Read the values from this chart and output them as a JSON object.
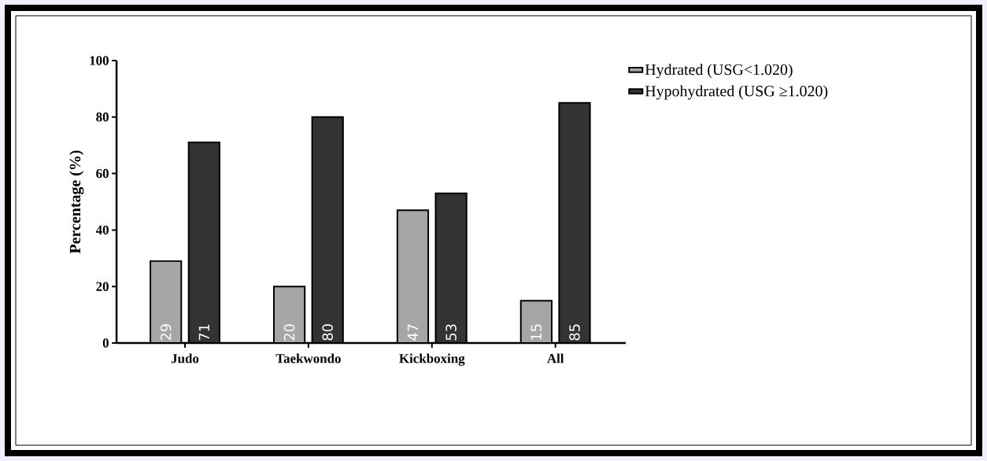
{
  "chart_data": {
    "type": "bar",
    "ylabel": "Percentage (%)",
    "categories": [
      "Judo",
      "Taekwondo",
      "Kickboxing",
      "All"
    ],
    "series": [
      {
        "name": "Hydrated (USG<1.020)",
        "color": "#a6a6a6",
        "values": [
          29,
          20,
          47,
          15
        ]
      },
      {
        "name": "Hypohydrated (USG ≥1.020)",
        "color": "#333333",
        "values": [
          71,
          80,
          53,
          85
        ]
      }
    ],
    "ylim": [
      0,
      100
    ],
    "yticks": [
      0,
      20,
      40,
      60,
      80,
      100
    ],
    "data_labels": true,
    "legend": "top right",
    "grid": false
  }
}
